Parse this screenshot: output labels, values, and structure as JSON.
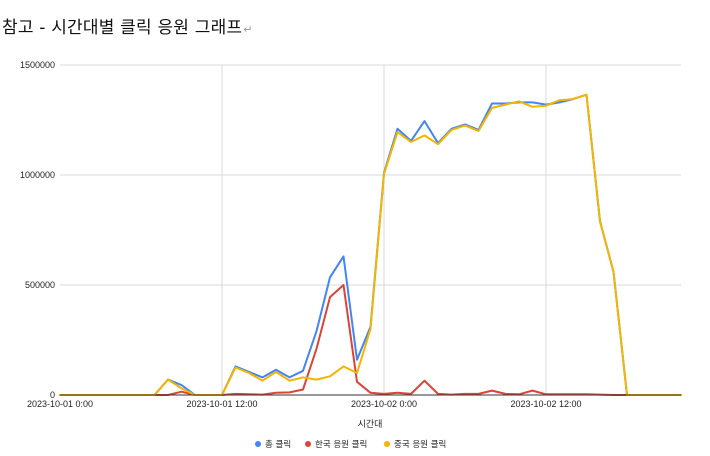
{
  "title": "참고 - 시간대별 클릭 응원 그래프",
  "title_mark": "↵",
  "chart_data": {
    "type": "line",
    "title": "참고 - 시간대별 클릭 응원 그래프",
    "xlabel": "시간대",
    "ylabel": "",
    "ylim": [
      0,
      1500000
    ],
    "yticks": [
      "0",
      "500000",
      "1000000",
      "1500000"
    ],
    "xticks": [
      "2023-10-01 0:00",
      "2023-10-01 12:00",
      "2023-10-02 0:00",
      "2023-10-02 12:00"
    ],
    "xtick_hours": [
      0,
      12,
      24,
      36
    ],
    "x_hours": [
      0,
      1,
      2,
      3,
      4,
      5,
      6,
      7,
      8,
      9,
      10,
      11,
      12,
      13,
      14,
      15,
      16,
      17,
      18,
      19,
      20,
      21,
      22,
      23,
      24,
      25,
      26,
      27,
      28,
      29,
      30,
      31,
      32,
      33,
      34,
      35,
      36,
      37,
      38,
      39,
      40,
      41,
      42,
      43,
      44,
      45,
      46
    ],
    "grid": true,
    "legend_position": "bottom",
    "series": [
      {
        "name": "총 클릭",
        "color": "#4285f4",
        "values": [
          0,
          0,
          0,
          0,
          0,
          0,
          0,
          0,
          70000,
          45000,
          0,
          0,
          0,
          130000,
          105000,
          80000,
          115000,
          80000,
          110000,
          290000,
          535000,
          630000,
          160000,
          310000,
          1010000,
          1210000,
          1155000,
          1245000,
          1145000,
          1210000,
          1230000,
          1205000,
          1325000,
          1325000,
          1330000,
          1330000,
          1320000,
          1330000,
          1345000,
          1365000,
          790000,
          560000,
          0,
          0,
          0,
          0,
          0
        ]
      },
      {
        "name": "한국 응원 클릭",
        "color": "#db4437",
        "values": [
          0,
          0,
          0,
          0,
          0,
          0,
          0,
          0,
          0,
          15000,
          0,
          0,
          0,
          5000,
          3000,
          2000,
          10000,
          12000,
          25000,
          210000,
          445000,
          500000,
          60000,
          10000,
          5000,
          10000,
          5000,
          65000,
          5000,
          2000,
          5000,
          5000,
          20000,
          5000,
          3000,
          20000,
          3000,
          3000,
          3000,
          3000,
          2000,
          0,
          0,
          0,
          0,
          0,
          0
        ]
      },
      {
        "name": "중국 응원 클릭",
        "color": "#f4b400",
        "values": [
          0,
          0,
          0,
          0,
          0,
          0,
          0,
          0,
          70000,
          30000,
          0,
          0,
          0,
          125000,
          100000,
          65000,
          105000,
          65000,
          80000,
          70000,
          85000,
          130000,
          100000,
          300000,
          1005000,
          1195000,
          1150000,
          1180000,
          1140000,
          1205000,
          1225000,
          1200000,
          1305000,
          1320000,
          1335000,
          1310000,
          1315000,
          1340000,
          1345000,
          1365000,
          790000,
          560000,
          0,
          0,
          0,
          0,
          0
        ]
      }
    ]
  }
}
